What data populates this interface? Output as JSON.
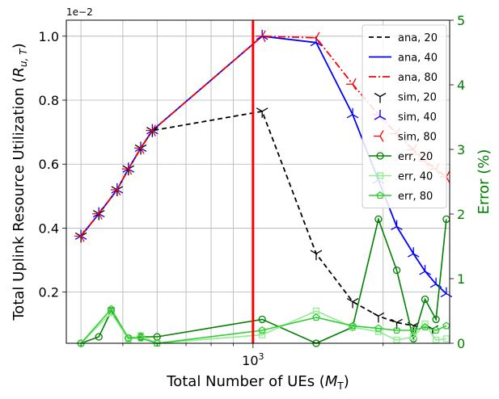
{
  "chart_data": {
    "type": "line",
    "x_scale": "log",
    "xlim": [
      370,
      2850
    ],
    "ylim": [
      0.04,
      1.05
    ],
    "y2lim": [
      0,
      5
    ],
    "grid": true,
    "legend_position": "top-right",
    "y_multiplier_label": "1e−2",
    "xlabel_main": "Total Number of UEs (",
    "xlabel_sym": "M",
    "xlabel_sub": "T",
    "xlabel_end": ")",
    "ylabel_main": "Total Uplink Resource Utilization (",
    "ylabel_sym": "R",
    "ylabel_sub": "u, T",
    "ylabel_end": ")",
    "y2label": "Error (%)",
    "x_tick_labels": [
      {
        "value": 1000,
        "base": "10",
        "exp": "3"
      }
    ],
    "y_ticks": [
      0.2,
      0.4,
      0.6,
      0.8,
      1.0
    ],
    "y_tick_labels": [
      "0.2",
      "0.4",
      "0.6",
      "0.8",
      "1.0"
    ],
    "y2_ticks": [
      0,
      1,
      2,
      3,
      4,
      5
    ],
    "y2_tick_labels": [
      "0",
      "1",
      "2",
      "3",
      "4",
      "5"
    ],
    "vline_x": 1000,
    "colors": {
      "ana20": "#000000",
      "ana40": "#0000ff",
      "ana80": "#ff0000",
      "err20": "#008000",
      "err40": "#90ee90",
      "err80": "#32cd32",
      "vline": "#ff0000",
      "right_axis": "#008000",
      "grid": "#b0b0b0"
    },
    "series": [
      {
        "name": "ana, 20",
        "axis": "left",
        "style": "ana20",
        "x": [
          400,
          440,
          485,
          515,
          550,
          585,
          1050,
          1400,
          1700,
          1950,
          2150,
          2350,
          2600
        ],
        "y": [
          0.375,
          0.445,
          0.52,
          0.585,
          0.65,
          0.705,
          0.765,
          0.32,
          0.17,
          0.125,
          0.105,
          0.095,
          0.085
        ]
      },
      {
        "name": "ana, 40",
        "axis": "left",
        "style": "ana40",
        "x": [
          400,
          440,
          485,
          515,
          550,
          585,
          1050,
          1400,
          1700,
          1950,
          2150,
          2350,
          2500,
          2650,
          2800
        ],
        "y": [
          0.375,
          0.445,
          0.52,
          0.585,
          0.65,
          0.705,
          1.0,
          0.98,
          0.755,
          0.55,
          0.405,
          0.32,
          0.265,
          0.225,
          0.195
        ]
      },
      {
        "name": "ana, 80",
        "axis": "left",
        "style": "ana80",
        "x": [
          400,
          440,
          485,
          515,
          550,
          585,
          1050,
          1400,
          1700,
          1950,
          2150,
          2350,
          2500,
          2650,
          2800
        ],
        "y": [
          0.375,
          0.445,
          0.52,
          0.585,
          0.65,
          0.705,
          1.0,
          0.995,
          0.85,
          0.755,
          0.695,
          0.645,
          0.61,
          0.585,
          0.56
        ]
      },
      {
        "name": "sim, 20",
        "axis": "left",
        "style": "sim20",
        "x": [
          400,
          440,
          485,
          515,
          550,
          585,
          1050,
          1400,
          1700,
          1950,
          2150,
          2350,
          2600
        ],
        "y": [
          0.375,
          0.445,
          0.52,
          0.585,
          0.65,
          0.705,
          0.765,
          0.32,
          0.17,
          0.125,
          0.105,
          0.095,
          0.085
        ]
      },
      {
        "name": "sim, 40",
        "axis": "left",
        "style": "sim40",
        "x": [
          400,
          440,
          485,
          515,
          550,
          585,
          1050,
          1400,
          1700,
          1950,
          2150,
          2350,
          2500,
          2650,
          2800
        ],
        "y": [
          0.375,
          0.445,
          0.52,
          0.585,
          0.65,
          0.705,
          1.0,
          0.98,
          0.755,
          0.55,
          0.405,
          0.32,
          0.265,
          0.225,
          0.195
        ]
      },
      {
        "name": "sim, 80",
        "axis": "left",
        "style": "sim80",
        "x": [
          400,
          440,
          485,
          515,
          550,
          585,
          1050,
          1400,
          1700,
          1950,
          2150,
          2350,
          2500,
          2650,
          2800
        ],
        "y": [
          0.375,
          0.445,
          0.52,
          0.585,
          0.65,
          0.705,
          1.0,
          0.995,
          0.85,
          0.755,
          0.695,
          0.645,
          0.61,
          0.585,
          0.56
        ]
      },
      {
        "name": "err, 20",
        "axis": "right",
        "style": "err20",
        "x": [
          400,
          440,
          470,
          515,
          550,
          600,
          1050,
          1400,
          1700,
          1950,
          2150,
          2350,
          2500,
          2650,
          2800
        ],
        "y": [
          0.0,
          0.1,
          0.5,
          0.08,
          0.1,
          0.1,
          0.37,
          0.0,
          0.25,
          1.92,
          1.13,
          0.07,
          0.68,
          0.37,
          1.92
        ]
      },
      {
        "name": "err, 40",
        "axis": "right",
        "style": "err40",
        "x": [
          400,
          470,
          515,
          550,
          600,
          1050,
          1400,
          1700,
          1950,
          2150,
          2350,
          2500,
          2650,
          2800
        ],
        "y": [
          0.0,
          0.47,
          0.06,
          0.12,
          0.0,
          0.13,
          0.5,
          0.25,
          0.18,
          0.05,
          0.1,
          0.3,
          0.05,
          0.07
        ]
      },
      {
        "name": "err, 80",
        "axis": "right",
        "style": "err80",
        "x": [
          400,
          470,
          515,
          550,
          600,
          1050,
          1400,
          1700,
          1950,
          2150,
          2350,
          2500,
          2650,
          2800
        ],
        "y": [
          0.0,
          0.53,
          0.08,
          0.08,
          0.0,
          0.2,
          0.4,
          0.27,
          0.23,
          0.2,
          0.2,
          0.25,
          0.2,
          0.27
        ]
      }
    ]
  }
}
